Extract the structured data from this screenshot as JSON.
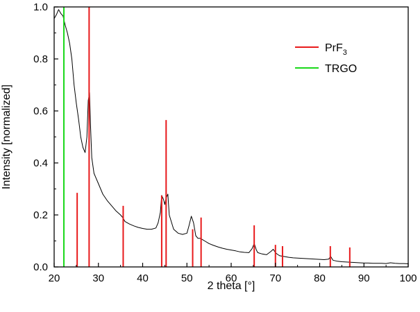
{
  "chart_data": {
    "type": "line",
    "xlabel": "2 theta [°]",
    "ylabel": "Intensity [normalized]",
    "xlim": [
      20,
      100
    ],
    "ylim": [
      0.0,
      1.0
    ],
    "x_ticks": [
      20,
      30,
      40,
      50,
      60,
      70,
      80,
      90,
      100
    ],
    "y_ticks": [
      0.0,
      0.2,
      0.4,
      0.6,
      0.8,
      1.0
    ],
    "x_tick_labels": [
      "20",
      "30",
      "40",
      "50",
      "60",
      "70",
      "80",
      "90",
      "100"
    ],
    "y_tick_labels": [
      "0.0",
      "0.2",
      "0.4",
      "0.6",
      "0.8",
      "1.0"
    ],
    "grid": false,
    "legend_position": "top-right",
    "colors": {
      "measured": "#000000",
      "prf3": "#e8191b",
      "trgo": "#19d819"
    },
    "measured": {
      "x": [
        20.0,
        20.5,
        21.0,
        21.5,
        22.0,
        22.5,
        23.0,
        23.5,
        24.0,
        24.5,
        25.0,
        25.5,
        26.0,
        26.5,
        27.0,
        27.4,
        27.7,
        28.0,
        28.2,
        28.5,
        29.0,
        30.0,
        31.0,
        32.0,
        33.0,
        34.0,
        35.0,
        35.5,
        36.0,
        37.0,
        38.0,
        39.0,
        40.0,
        41.0,
        42.0,
        43.0,
        43.5,
        44.0,
        44.3,
        44.7,
        45.0,
        45.3,
        45.7,
        46.0,
        47.0,
        48.0,
        49.0,
        50.0,
        50.5,
        51.0,
        51.5,
        52.0,
        52.5,
        53.0,
        53.5,
        54.0,
        55.0,
        56.0,
        57.0,
        58.0,
        59.0,
        60.0,
        61.0,
        62.0,
        63.0,
        64.0,
        64.7,
        65.2,
        65.7,
        66.0,
        67.0,
        68.0,
        69.0,
        69.5,
        70.0,
        70.5,
        71.0,
        72.0,
        73.0,
        74.0,
        75.0,
        76.0,
        77.0,
        78.0,
        79.0,
        80.0,
        81.0,
        82.0,
        82.5,
        83.0,
        84.0,
        85.0,
        86.0,
        87.0,
        88.0,
        89.0,
        90.0,
        91.0,
        92.0,
        93.0,
        94.0,
        95.0,
        96.0,
        97.0,
        98.0,
        99.0,
        100.0
      ],
      "y": [
        0.955,
        0.97,
        0.99,
        0.975,
        0.965,
        0.93,
        0.9,
        0.86,
        0.8,
        0.7,
        0.63,
        0.57,
        0.5,
        0.46,
        0.44,
        0.5,
        0.64,
        0.67,
        0.55,
        0.42,
        0.36,
        0.32,
        0.28,
        0.255,
        0.235,
        0.215,
        0.2,
        0.19,
        0.175,
        0.165,
        0.158,
        0.152,
        0.148,
        0.145,
        0.145,
        0.15,
        0.17,
        0.21,
        0.275,
        0.26,
        0.24,
        0.265,
        0.28,
        0.2,
        0.145,
        0.13,
        0.125,
        0.13,
        0.16,
        0.195,
        0.17,
        0.12,
        0.11,
        0.11,
        0.105,
        0.1,
        0.09,
        0.083,
        0.077,
        0.072,
        0.068,
        0.065,
        0.062,
        0.058,
        0.056,
        0.055,
        0.07,
        0.09,
        0.065,
        0.055,
        0.05,
        0.047,
        0.06,
        0.068,
        0.055,
        0.048,
        0.043,
        0.04,
        0.037,
        0.035,
        0.034,
        0.033,
        0.032,
        0.031,
        0.03,
        0.029,
        0.028,
        0.03,
        0.04,
        0.026,
        0.022,
        0.02,
        0.019,
        0.018,
        0.017,
        0.016,
        0.015,
        0.015,
        0.014,
        0.014,
        0.014,
        0.013,
        0.016,
        0.014,
        0.013,
        0.013,
        0.012
      ]
    },
    "series": [
      {
        "name": "PrF",
        "name_sub": "3",
        "type": "stick",
        "x": [
          25.2,
          27.9,
          35.6,
          44.3,
          45.3,
          51.3,
          53.2,
          65.2,
          70.0,
          71.6,
          82.4,
          86.8
        ],
        "y": [
          0.285,
          1.0,
          0.235,
          0.275,
          0.565,
          0.145,
          0.19,
          0.16,
          0.085,
          0.08,
          0.08,
          0.075
        ]
      },
      {
        "name": "TRGO",
        "type": "stick",
        "x": [
          22.2
        ],
        "y": [
          1.0
        ]
      }
    ]
  }
}
